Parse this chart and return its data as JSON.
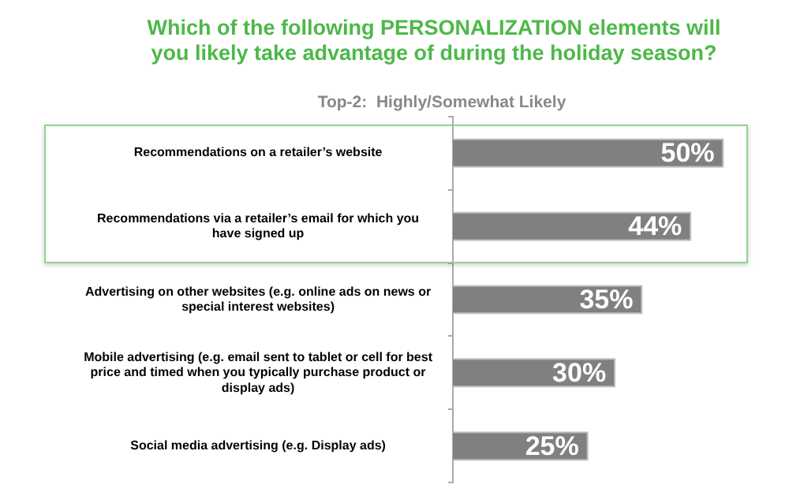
{
  "chart_data": {
    "type": "bar",
    "orientation": "horizontal",
    "title": "Which of the following PERSONALIZATION elements will you likely take advantage of during the holiday season?",
    "subtitle": "Top-2:  Highly/Somewhat Likely",
    "categories": [
      "Recommendations on a retailer’s website",
      "Recommendations via a retailer’s email for which you have signed up",
      "Advertising on other websites (e.g. online ads on news or special interest websites)",
      "Mobile advertising (e.g. email sent to tablet or cell for best price and timed when you typically purchase product or display ads)",
      "Social media advertising (e.g. Display ads)"
    ],
    "values": [
      50,
      44,
      35,
      30,
      25
    ],
    "value_labels": [
      "50%",
      "44%",
      "35%",
      "30%",
      "25%"
    ],
    "color": "#808080"
  }
}
